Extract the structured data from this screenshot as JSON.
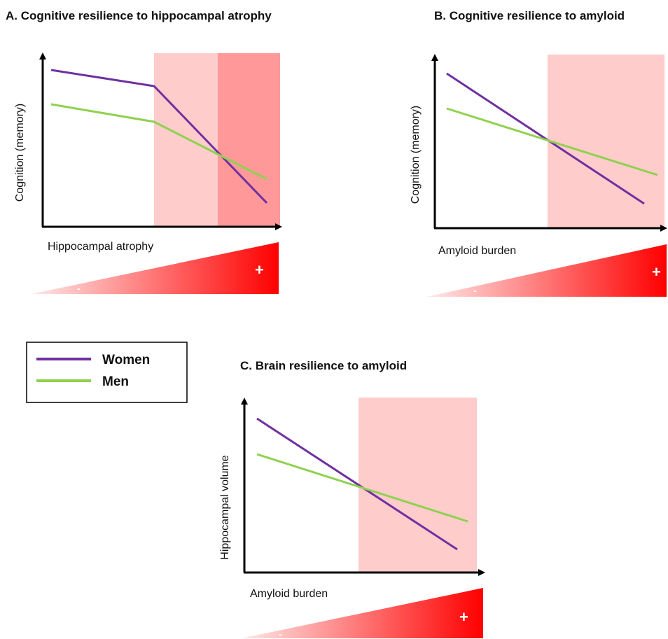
{
  "colors": {
    "women": "#7030a0",
    "men": "#8fd14f",
    "zone_light": "#ffcccc",
    "zone_dark": "#ff9999",
    "gradient_start": "#ffe8e8",
    "gradient_end": "#ff0000",
    "axis": "#000000"
  },
  "legend": {
    "women_label": "Women",
    "men_label": "Men"
  },
  "panels": {
    "a": {
      "title": "A. Cognitive resilience to hippocampal atrophy",
      "ylabel": "Cognition (memory)",
      "xlabel": "Hippocampal atrophy",
      "minus": "-",
      "plus": "+"
    },
    "b": {
      "title": "B. Cognitive resilience to amyloid",
      "ylabel": "Cognition (memory)",
      "xlabel": "Amyloid burden",
      "minus": "-",
      "plus": "+"
    },
    "c": {
      "title": "C. Brain resilience to amyloid",
      "ylabel": "Hippocampal volume",
      "xlabel": "Amyloid burden",
      "minus": "-",
      "plus": "+"
    }
  },
  "chart_data": [
    {
      "type": "line",
      "title": "A. Cognitive resilience to hippocampal atrophy",
      "xlabel": "Hippocampal atrophy",
      "ylabel": "Cognition (memory)",
      "series": [
        {
          "name": "Women",
          "x": [
            0.04,
            0.47,
            0.94
          ],
          "y": [
            0.93,
            0.83,
            0.14
          ]
        },
        {
          "name": "Men",
          "x": [
            0.04,
            0.47,
            0.94
          ],
          "y": [
            0.73,
            0.63,
            0.29
          ]
        }
      ],
      "shaded_regions": [
        {
          "from": 0.47,
          "to": 0.74,
          "shade": "light"
        },
        {
          "from": 0.74,
          "to": 1.0,
          "shade": "dark"
        }
      ]
    },
    {
      "type": "line",
      "title": "B. Cognitive resilience to amyloid",
      "xlabel": "Amyloid burden",
      "ylabel": "Cognition (memory)",
      "series": [
        {
          "name": "Women",
          "x": [
            0.05,
            0.91
          ],
          "y": [
            0.91,
            0.14
          ]
        },
        {
          "name": "Men",
          "x": [
            0.05,
            0.97
          ],
          "y": [
            0.71,
            0.31
          ]
        }
      ],
      "shaded_regions": [
        {
          "from": 0.49,
          "to": 1.0,
          "shade": "light"
        }
      ]
    },
    {
      "type": "line",
      "title": "C. Brain resilience to amyloid",
      "xlabel": "Amyloid burden",
      "ylabel": "Hippocampal volume",
      "series": [
        {
          "name": "Women",
          "x": [
            0.05,
            0.92
          ],
          "y": [
            0.91,
            0.13
          ]
        },
        {
          "name": "Men",
          "x": [
            0.05,
            0.95
          ],
          "y": [
            0.71,
            0.31
          ]
        }
      ],
      "shaded_regions": [
        {
          "from": 0.49,
          "to": 1.0,
          "shade": "light"
        }
      ]
    }
  ]
}
